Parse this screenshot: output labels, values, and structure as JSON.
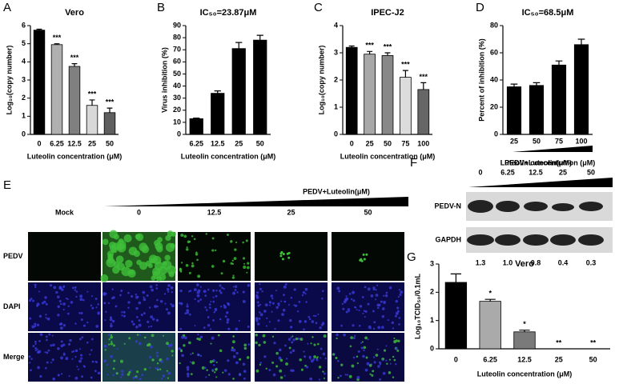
{
  "chart_data": [
    {
      "type": "bar",
      "panel": "A",
      "title": "Vero",
      "y_label": "Log₁₀(copy number)",
      "x_label": "Luteolin concentration (μM)",
      "categories": [
        "0",
        "6.25",
        "12.5",
        "25",
        "50"
      ],
      "values": [
        5.75,
        4.95,
        3.75,
        1.6,
        1.2
      ],
      "errors": [
        0.05,
        0.05,
        0.15,
        0.3,
        0.25
      ],
      "annotations": [
        null,
        "***",
        "***",
        "***",
        "***"
      ],
      "colors": [
        "#000000",
        "#b0b0b0",
        "#808080",
        "#d8d8d8",
        "#5f5f5f"
      ],
      "ylim": [
        0,
        6
      ],
      "yticks": [
        0,
        1,
        2,
        3,
        4,
        5,
        6
      ]
    },
    {
      "type": "bar",
      "panel": "B",
      "title": "IC₅₀=23.87μM",
      "y_label": "Virus inhibition (%)",
      "x_label": "Luteolin concentration (μM)",
      "categories": [
        "6.25",
        "12.5",
        "25",
        "50"
      ],
      "values": [
        13,
        34,
        71,
        78
      ],
      "errors": [
        0.5,
        2,
        5,
        4
      ],
      "annotations": [
        null,
        null,
        null,
        null
      ],
      "colors": [
        "#000000",
        "#000000",
        "#000000",
        "#000000"
      ],
      "ylim": [
        0,
        90
      ],
      "yticks": [
        0,
        10,
        20,
        30,
        40,
        50,
        60,
        70,
        80,
        90
      ]
    },
    {
      "type": "bar",
      "panel": "C",
      "title": "IPEC-J2",
      "y_label": "Log₁₀(copy number)",
      "x_label": "Luteolin concentration (μM)",
      "categories": [
        "0",
        "25",
        "50",
        "75",
        "100"
      ],
      "values": [
        3.2,
        2.95,
        2.9,
        2.1,
        1.65
      ],
      "errors": [
        0.05,
        0.1,
        0.1,
        0.25,
        0.25
      ],
      "annotations": [
        null,
        "***",
        "***",
        "***",
        "***"
      ],
      "colors": [
        "#000000",
        "#a8a8a8",
        "#888888",
        "#dcdcdc",
        "#666666"
      ],
      "ylim": [
        0,
        4
      ],
      "yticks": [
        0,
        1,
        2,
        3,
        4
      ]
    },
    {
      "type": "bar",
      "panel": "D",
      "title": "IC₅₀=68.5μM",
      "y_label": "Percent of inhibition (%)",
      "x_label": "Luteolin concentration (μM)",
      "categories": [
        "25",
        "50",
        "75",
        "100"
      ],
      "values": [
        35,
        36,
        51,
        66
      ],
      "errors": [
        2,
        2,
        3,
        4
      ],
      "annotations": [
        null,
        null,
        null,
        null
      ],
      "colors": [
        "#000000",
        "#000000",
        "#000000",
        "#000000"
      ],
      "ylim": [
        0,
        80
      ],
      "yticks": [
        0,
        20,
        40,
        60,
        80
      ]
    },
    {
      "type": "bar",
      "panel": "G",
      "title": "Vero",
      "y_label": "Log₁₀TCID₅₀/0.1mL",
      "x_label": "Luteolin concentration (μM)",
      "categories": [
        "0",
        "6.25",
        "12.5",
        "25",
        "50"
      ],
      "values": [
        2.35,
        1.68,
        0.6,
        0,
        0
      ],
      "errors": [
        0.3,
        0.07,
        0.06,
        null,
        null
      ],
      "annotations": [
        null,
        "*",
        "*",
        "**",
        "**"
      ],
      "colors": [
        "#000000",
        "#aaaaaa",
        "#7a7a7a",
        "#cccccc",
        "#555555"
      ],
      "ylim": [
        0,
        3
      ],
      "yticks": [
        0,
        1,
        2,
        3
      ]
    }
  ],
  "microscopy": {
    "panel": "E",
    "title": "PEDV+Luteolin(μM)",
    "columns": [
      "Mock",
      "0",
      "12.5",
      "25",
      "50"
    ],
    "rows": [
      "PEDV",
      "DAPI",
      "Merge"
    ]
  },
  "western_blot": {
    "panel": "F",
    "title": "PEDV+Luteolin(μM)",
    "lanes": [
      "0",
      "6.25",
      "12.5",
      "25",
      "50"
    ],
    "bands": [
      "PEDV-N",
      "GAPDH"
    ],
    "ratios": [
      "1.3",
      "1.0",
      "0.8",
      "0.4",
      "0.3"
    ]
  }
}
